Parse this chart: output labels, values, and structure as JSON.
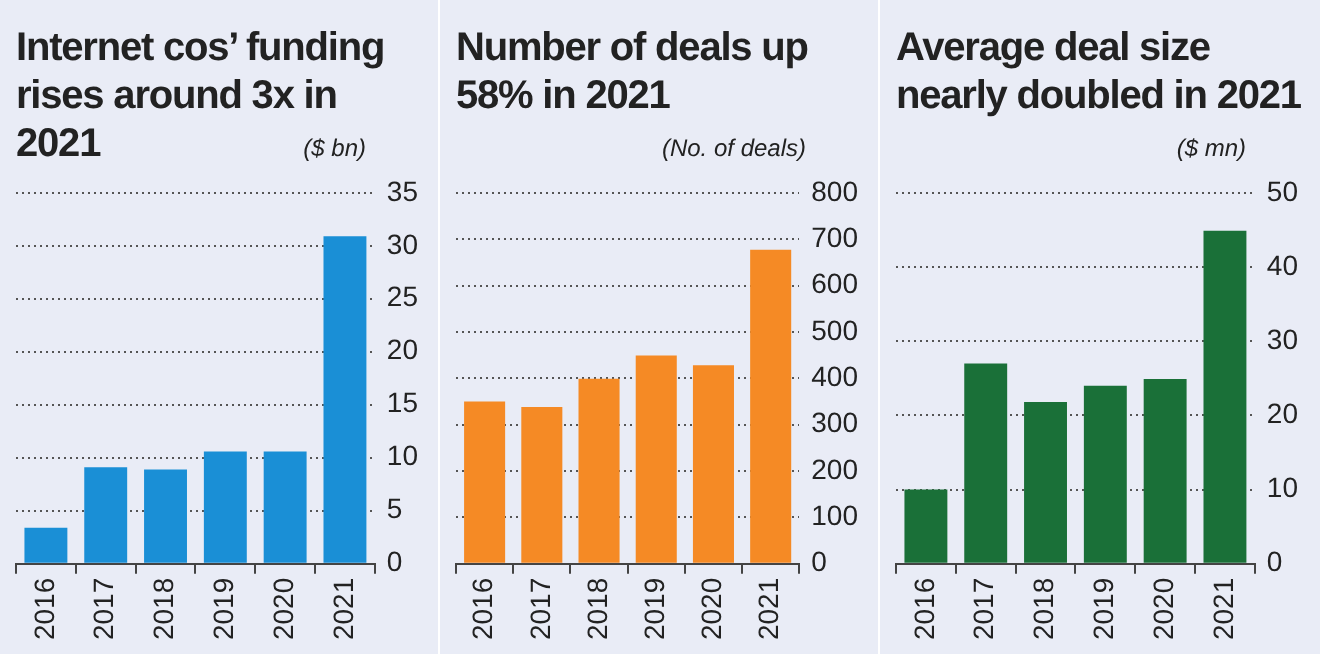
{
  "chart_data": [
    {
      "type": "bar",
      "title": "Internet cos’ funding rises around 3x in 2021",
      "ylabel": "($ bn)",
      "categories": [
        "2016",
        "2017",
        "2018",
        "2019",
        "2020",
        "2021"
      ],
      "values": [
        3.4,
        9.1,
        8.9,
        10.6,
        10.6,
        30.9
      ],
      "color": "#1a8fd6",
      "ylim": [
        0,
        35
      ],
      "yticks": [
        0,
        5,
        10,
        15,
        20,
        25,
        30,
        35
      ],
      "grid": "y",
      "legend": false
    },
    {
      "type": "bar",
      "title": "Number of deals up 58% in 2021",
      "ylabel": "(No. of deals)",
      "categories": [
        "2016",
        "2017",
        "2018",
        "2019",
        "2020",
        "2021"
      ],
      "values": [
        350,
        338,
        399,
        449,
        428,
        677
      ],
      "color": "#f58a25",
      "ylim": [
        0,
        800
      ],
      "yticks": [
        0,
        100,
        200,
        300,
        400,
        500,
        600,
        700,
        800
      ],
      "grid": "y",
      "legend": false
    },
    {
      "type": "bar",
      "title": "Average deal size nearly doubled in 2021",
      "ylabel": "($ mn)",
      "categories": [
        "2016",
        "2017",
        "2018",
        "2019",
        "2020",
        "2021"
      ],
      "values": [
        10.0,
        27.0,
        21.8,
        24.0,
        24.9,
        44.9
      ],
      "color": "#1a7038",
      "ylim": [
        0,
        50
      ],
      "yticks": [
        0,
        10,
        20,
        30,
        40,
        50
      ],
      "grid": "y",
      "legend": false
    }
  ]
}
